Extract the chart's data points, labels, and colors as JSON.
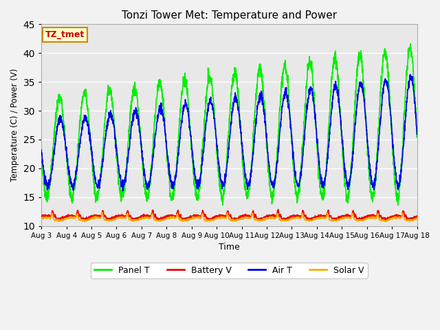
{
  "title": "Tonzi Tower Met: Temperature and Power",
  "xlabel": "Time",
  "ylabel": "Temperature (C) / Power (V)",
  "ylim": [
    10,
    45
  ],
  "annotation_text": "TZ_tmet",
  "annotation_bg": "#ffffcc",
  "annotation_border": "#cc8800",
  "annotation_text_color": "#cc0000",
  "colors": {
    "panel_t": "#00ee00",
    "battery_v": "#ee0000",
    "air_t": "#0000ee",
    "solar_v": "#ffaa00"
  },
  "legend_labels": [
    "Panel T",
    "Battery V",
    "Air T",
    "Solar V"
  ],
  "x_tick_labels": [
    "Aug 3",
    "Aug 4",
    "Aug 5",
    "Aug 6",
    "Aug 7",
    "Aug 8",
    "Aug 9",
    "Aug 10",
    "Aug 11",
    "Aug 12",
    "Aug 13",
    "Aug 14",
    "Aug 15",
    "Aug 16",
    "Aug 17",
    "Aug 18"
  ],
  "fig_bg": "#f2f2f2",
  "plot_bg": "#e8e8e8",
  "grid_color": "#ffffff",
  "linewidth": 1.2
}
